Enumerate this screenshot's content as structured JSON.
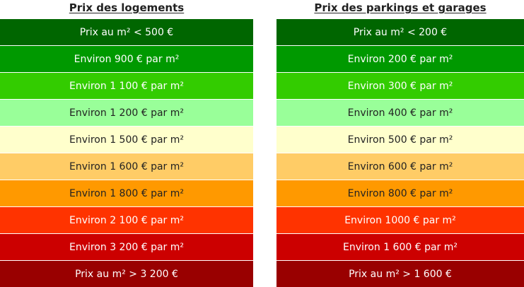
{
  "logements": {
    "title": "Prix des logements",
    "rows": [
      {
        "label": "Prix au m² < 500 €",
        "bg": "#006600",
        "fg": "#ffffff"
      },
      {
        "label": "Environ 900 € par m²",
        "bg": "#009900",
        "fg": "#ffffff"
      },
      {
        "label": "Environ 1 100 € par m²",
        "bg": "#33cc00",
        "fg": "#ffffff"
      },
      {
        "label": "Environ 1 200 € par m²",
        "bg": "#99ff99",
        "fg": "#222222"
      },
      {
        "label": "Environ 1 500 € par m²",
        "bg": "#ffffcc",
        "fg": "#222222"
      },
      {
        "label": "Environ 1 600 € par m²",
        "bg": "#ffcc66",
        "fg": "#222222"
      },
      {
        "label": "Environ 1 800 € par m²",
        "bg": "#ff9900",
        "fg": "#222222"
      },
      {
        "label": "Environ 2 100 € par m²",
        "bg": "#ff3300",
        "fg": "#ffffff"
      },
      {
        "label": "Environ 3 200 € par m²",
        "bg": "#cc0000",
        "fg": "#ffffff"
      },
      {
        "label": "Prix au m² > 3 200 €",
        "bg": "#990000",
        "fg": "#ffffff"
      }
    ]
  },
  "parkings": {
    "title": "Prix des parkings et garages",
    "rows": [
      {
        "label": "Prix au m² < 200 €",
        "bg": "#006600",
        "fg": "#ffffff"
      },
      {
        "label": "Environ 200 € par m²",
        "bg": "#009900",
        "fg": "#ffffff"
      },
      {
        "label": "Environ 300 € par m²",
        "bg": "#33cc00",
        "fg": "#ffffff"
      },
      {
        "label": "Environ 400 € par m²",
        "bg": "#99ff99",
        "fg": "#222222"
      },
      {
        "label": "Environ 500 € par m²",
        "bg": "#ffffcc",
        "fg": "#222222"
      },
      {
        "label": "Environ 600 € par m²",
        "bg": "#ffcc66",
        "fg": "#222222"
      },
      {
        "label": "Environ 800 € par m²",
        "bg": "#ff9900",
        "fg": "#222222"
      },
      {
        "label": "Environ 1000 € par m²",
        "bg": "#ff3300",
        "fg": "#ffffff"
      },
      {
        "label": "Environ 1 600 € par m²",
        "bg": "#cc0000",
        "fg": "#ffffff"
      },
      {
        "label": "Prix au m² > 1 600 €",
        "bg": "#990000",
        "fg": "#ffffff"
      }
    ]
  }
}
